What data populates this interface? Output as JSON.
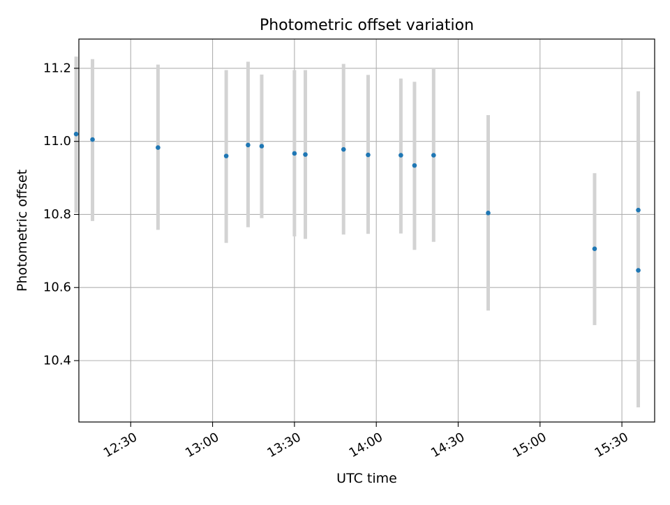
{
  "chart_data": {
    "type": "scatter",
    "title": "Photometric offset variation",
    "xlabel": "UTC time",
    "ylabel": "Photometric offset",
    "x_axis_type": "time",
    "xlim": [
      "12:11",
      "15:42"
    ],
    "ylim": [
      10.232,
      11.28
    ],
    "x_ticks": [
      "12:30",
      "13:00",
      "13:30",
      "14:00",
      "14:30",
      "15:00",
      "15:30"
    ],
    "y_ticks": [
      10.4,
      10.6,
      10.8,
      11.0,
      11.2
    ],
    "y_tick_labels": [
      "10.4",
      "10.6",
      "10.8",
      "11.0",
      "11.2"
    ],
    "grid": true,
    "legend": "none",
    "colors": {
      "points": "#1f77b4",
      "error_bars": "#d3d3d3",
      "grid": "#b0b0b0"
    },
    "series": [
      {
        "points": [
          {
            "x": "12:10",
            "y": 11.02,
            "low": 10.805,
            "high": 11.232
          },
          {
            "x": "12:16",
            "y": 11.005,
            "low": 10.782,
            "high": 11.225
          },
          {
            "x": "12:40",
            "y": 10.983,
            "low": 10.758,
            "high": 11.21
          },
          {
            "x": "13:05",
            "y": 10.96,
            "low": 10.722,
            "high": 11.195
          },
          {
            "x": "13:13",
            "y": 10.99,
            "low": 10.765,
            "high": 11.218
          },
          {
            "x": "13:18",
            "y": 10.987,
            "low": 10.79,
            "high": 11.183
          },
          {
            "x": "13:30",
            "y": 10.967,
            "low": 10.74,
            "high": 11.195
          },
          {
            "x": "13:34",
            "y": 10.964,
            "low": 10.733,
            "high": 11.195
          },
          {
            "x": "13:48",
            "y": 10.978,
            "low": 10.745,
            "high": 11.212
          },
          {
            "x": "13:57",
            "y": 10.963,
            "low": 10.747,
            "high": 11.182
          },
          {
            "x": "14:09",
            "y": 10.962,
            "low": 10.748,
            "high": 11.172
          },
          {
            "x": "14:14",
            "y": 10.934,
            "low": 10.703,
            "high": 11.163
          },
          {
            "x": "14:21",
            "y": 10.962,
            "low": 10.725,
            "high": 11.198
          },
          {
            "x": "14:41",
            "y": 10.804,
            "low": 10.537,
            "high": 11.072
          },
          {
            "x": "15:20",
            "y": 10.706,
            "low": 10.497,
            "high": 10.913
          },
          {
            "x": "15:36",
            "y": 10.812,
            "low": 10.487,
            "high": 11.137
          },
          {
            "x": "15:36",
            "y": 10.647,
            "low": 10.272,
            "high": 11.02
          }
        ]
      }
    ]
  }
}
